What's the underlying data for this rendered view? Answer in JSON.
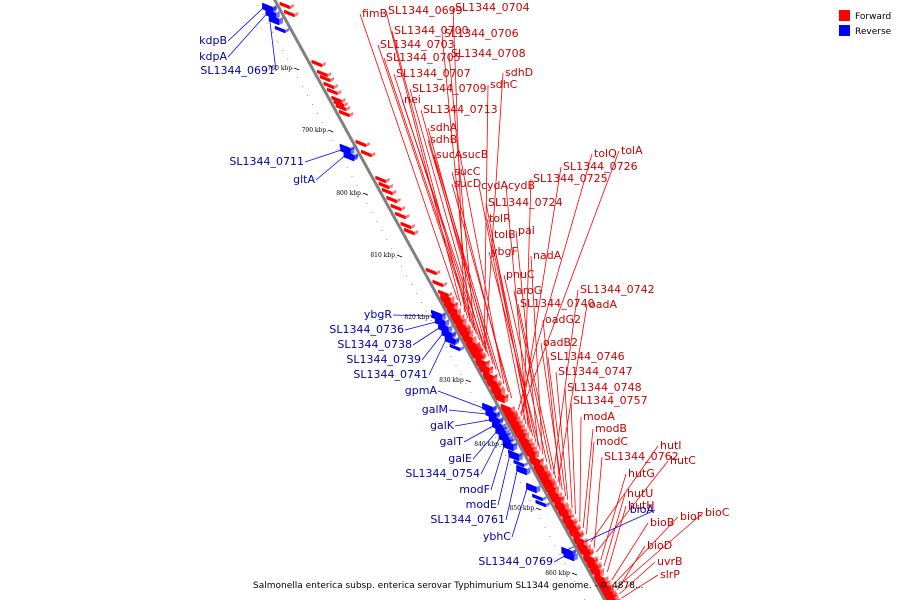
{
  "colors": {
    "forward": "#ff0000",
    "reverse": "#0000ff",
    "backbone": "#808080",
    "label_forward": "#cc0000",
    "label_reverse": "#0000aa"
  },
  "legend": [
    {
      "key": "forward",
      "label": "Forward"
    },
    {
      "key": "reverse",
      "label": "Reverse"
    }
  ],
  "caption": "Salmonella enterica subsp. enterica serovar Typhimurium SL1344 genome.",
  "caption_suffix": " - 0..4878...",
  "ticks": [
    "780 kbp",
    "790 kbp",
    "800 kbp",
    "810 kbp",
    "820 kbp",
    "830 kbp",
    "840 kbp",
    "850 kbp",
    "860 kbp"
  ],
  "forward_labels": [
    "fimB",
    "SL1344_0699",
    "SL1344_0704",
    "SL1344_0700",
    "SL1344_0706",
    "SL1344_0703",
    "SL1344_0705",
    "SL1344_0708",
    "SL1344_0707",
    "sdhD",
    "SL1344_0709",
    "sdhC",
    "nei",
    "SL1344_0713",
    "sdhA",
    "sdhB",
    "sucA",
    "sucB",
    "sucC",
    "sucD",
    "tolQ",
    "tolA",
    "SL1344_0726",
    "SL1344_0725",
    "cydA",
    "cydB",
    "SL1344_0724",
    "tolR",
    "tolB",
    "pal",
    "ybgF",
    "nadA",
    "pnuC",
    "aroG",
    "SL1344_0742",
    "SL1344_0740",
    "oadA",
    "oadG2",
    "oadB2",
    "SL1344_0746",
    "SL1344_0747",
    "SL1344_0748",
    "SL1344_0757",
    "modA",
    "modB",
    "modC",
    "hutI",
    "SL1344_0762",
    "hutC",
    "hutG",
    "hutU",
    "hutH",
    "bioB",
    "bioF",
    "bioC",
    "bioD",
    "uvrB",
    "slrP"
  ],
  "reverse_labels": [
    "kdpB",
    "kdpA",
    "SL1344_0691",
    "SL1344_0711",
    "gltA",
    "ybgR",
    "SL1344_0736",
    "SL1344_0738",
    "SL1344_0739",
    "SL1344_0741",
    "gpmA",
    "galM",
    "galK",
    "galT",
    "galE",
    "SL1344_0754",
    "modF",
    "modE",
    "SL1344_0761",
    "ybhC",
    "bioA",
    "SL1344_0769"
  ]
}
